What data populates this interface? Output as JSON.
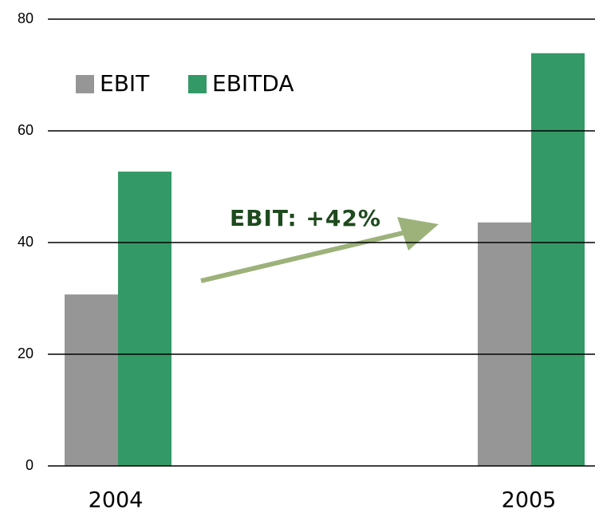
{
  "chart_data": {
    "type": "bar",
    "categories": [
      "2004",
      "2005"
    ],
    "series": [
      {
        "name": "EBIT",
        "color": "#969696",
        "values": [
          30.7,
          43.6
        ]
      },
      {
        "name": "EBITDA",
        "color": "#339966",
        "values": [
          52.7,
          73.9
        ]
      }
    ],
    "ylim": [
      0,
      80
    ],
    "yticks": [
      0,
      20,
      40,
      60,
      80
    ],
    "grid": true,
    "annotation": "EBIT: +42%"
  }
}
